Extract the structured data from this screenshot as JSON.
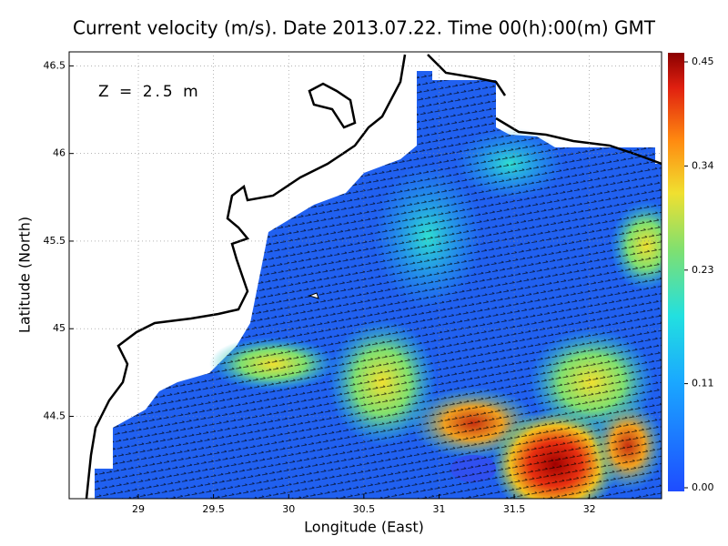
{
  "chart_data": {
    "type": "map",
    "title": "Current velocity (m/s). Date 2013.07.22. Time 00(h):00(m) GMT",
    "annotation": "Z = 2.5 m",
    "xlabel": "Longitude (East)",
    "ylabel": "Latitude (North)",
    "xlim": [
      28.54,
      32.48
    ],
    "xticks": [
      29,
      29.5,
      30,
      30.5,
      31,
      31.5,
      32
    ],
    "ylim": [
      44.03,
      46.58
    ],
    "yticks": [
      44.5,
      45,
      45.5,
      46,
      46.5
    ],
    "grid": true,
    "clim": [
      0,
      0.45
    ],
    "cticks": [
      {
        "value": 0,
        "label": "0.00"
      },
      {
        "value": 0.11,
        "label": "0.11"
      },
      {
        "value": 0.23,
        "label": "0.23"
      },
      {
        "value": 0.34,
        "label": "0.34"
      },
      {
        "value": 0.45,
        "label": "0.45"
      }
    ]
  }
}
